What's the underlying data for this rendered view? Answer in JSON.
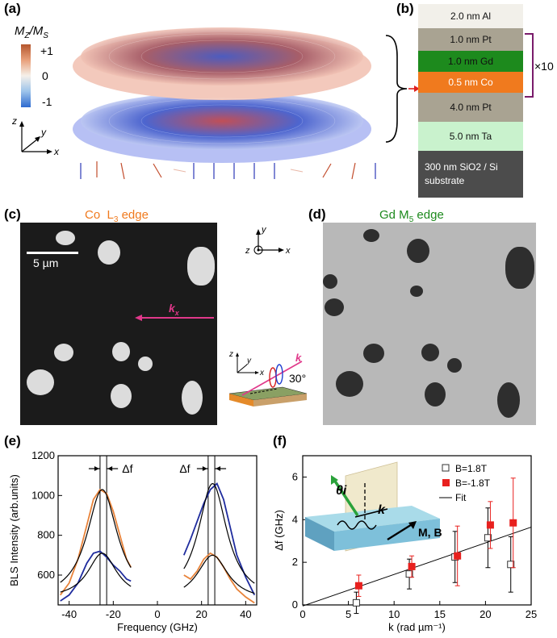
{
  "panels": {
    "a": {
      "label": "(a)",
      "colorbar_title": "Mz/Ms",
      "colorbar_ticks": [
        "+1",
        "0",
        "-1"
      ],
      "axis_labels": {
        "z": "z",
        "y": "y",
        "x": "x"
      }
    },
    "b": {
      "label": "(b)",
      "layers": [
        {
          "text": "2.0 nm Al",
          "color": "#f2f0ea"
        },
        {
          "text": "1.0 nm Pt",
          "color": "#a9a392"
        },
        {
          "text": "1.0 nm Gd",
          "color": "#1d8a1d"
        },
        {
          "text": "0.5 nm Co",
          "color": "#f07a1e"
        },
        {
          "text": "4.0 nm Pt",
          "color": "#a9a392"
        },
        {
          "text": "5.0 nm Ta",
          "color": "#c9f2cd"
        },
        {
          "text": "300 nm SiO2 / Si substrate",
          "color": "#4c4c4c"
        }
      ],
      "repeat_label": "×10"
    },
    "c": {
      "label": "(c)",
      "title": "Co  L3 edge",
      "scale_bar": "5 µm",
      "k_label": "kx"
    },
    "inset_axes": {
      "y": "y",
      "z": "z",
      "x": "x"
    },
    "inset_geometry": {
      "z": "z",
      "y": "y",
      "x": "x",
      "k": "k",
      "angle": "30°"
    },
    "d": {
      "label": "(d)",
      "title": "Gd M5 edge"
    },
    "e": {
      "label": "(e)",
      "delta_labels": [
        "Δf",
        "Δf"
      ]
    },
    "f": {
      "label": "(f)",
      "inset_labels": {
        "theta": "θi",
        "k": "k",
        "mb": "M, B"
      }
    }
  },
  "chart_data": [
    {
      "type": "line",
      "panel": "e",
      "xlabel": "Frequency (GHz)",
      "ylabel": "BLS Intensity (arb.units)",
      "xlim": [
        -45,
        45
      ],
      "ylim": [
        450,
        1200
      ],
      "xticks": [
        -40,
        -20,
        0,
        20,
        40
      ],
      "yticks": [
        600,
        800,
        1000,
        1200
      ],
      "vertical_lines": [
        -26,
        -23,
        23,
        26
      ],
      "series": [
        {
          "color": "#e8833a",
          "x": [
            -44,
            -40,
            -36,
            -32,
            -29,
            -26,
            -23,
            -20,
            -17,
            -14,
            -12,
            12,
            15,
            18,
            21,
            24,
            27,
            30,
            33,
            36,
            40,
            44
          ],
          "y": [
            500,
            560,
            680,
            850,
            980,
            1030,
            1010,
            920,
            800,
            680,
            640,
            600,
            580,
            620,
            680,
            710,
            690,
            640,
            580,
            530,
            490,
            460
          ]
        },
        {
          "color": "#1f2c9e",
          "x": [
            -44,
            -40,
            -36,
            -32,
            -29,
            -26,
            -23,
            -20,
            -17,
            -14,
            -12,
            12,
            15,
            18,
            21,
            24,
            27,
            30,
            33,
            36,
            40,
            44
          ],
          "y": [
            470,
            500,
            560,
            660,
            710,
            720,
            690,
            650,
            620,
            580,
            570,
            700,
            780,
            870,
            960,
            1030,
            1060,
            980,
            840,
            700,
            590,
            500
          ]
        }
      ],
      "fits": [
        {
          "x0": -25,
          "amp": 560,
          "w": 8.5,
          "base": 470,
          "range": [
            -44,
            -12
          ]
        },
        {
          "x0": 25,
          "amp": 590,
          "w": 8.0,
          "base": 470,
          "range": [
            12,
            44
          ]
        },
        {
          "x0": -25,
          "amp": 230,
          "w": 8.0,
          "base": 480,
          "range": [
            -44,
            -12
          ]
        },
        {
          "x0": 25,
          "amp": 230,
          "w": 8.5,
          "base": 470,
          "range": [
            12,
            44
          ]
        }
      ]
    },
    {
      "type": "scatter",
      "panel": "f",
      "xlabel": "k (rad µm⁻¹)",
      "ylabel": "Δf (GHz)",
      "xlim": [
        0,
        25
      ],
      "ylim": [
        0,
        7
      ],
      "xticks": [
        0,
        5,
        10,
        15,
        20,
        25
      ],
      "yticks": [
        0,
        2,
        4,
        6
      ],
      "series": [
        {
          "name": "B=1.8T",
          "marker": "open-square",
          "x": [
            6.0,
            11.8,
            16.8,
            20.4,
            22.9
          ],
          "y": [
            0.1,
            1.45,
            2.25,
            3.15,
            1.9
          ],
          "err": [
            0.5,
            0.7,
            1.2,
            1.4,
            1.3
          ]
        },
        {
          "name": "B=-1.8T",
          "marker": "filled-square",
          "color": "#e8201e",
          "x": [
            6.0,
            11.8,
            16.8,
            20.4,
            22.9
          ],
          "y": [
            0.9,
            1.8,
            2.3,
            3.75,
            3.85
          ],
          "err": [
            0.5,
            0.5,
            1.4,
            1.1,
            2.1
          ]
        }
      ],
      "fit": {
        "name": "Fit",
        "slope": 0.148,
        "intercept": -0.05
      }
    }
  ]
}
